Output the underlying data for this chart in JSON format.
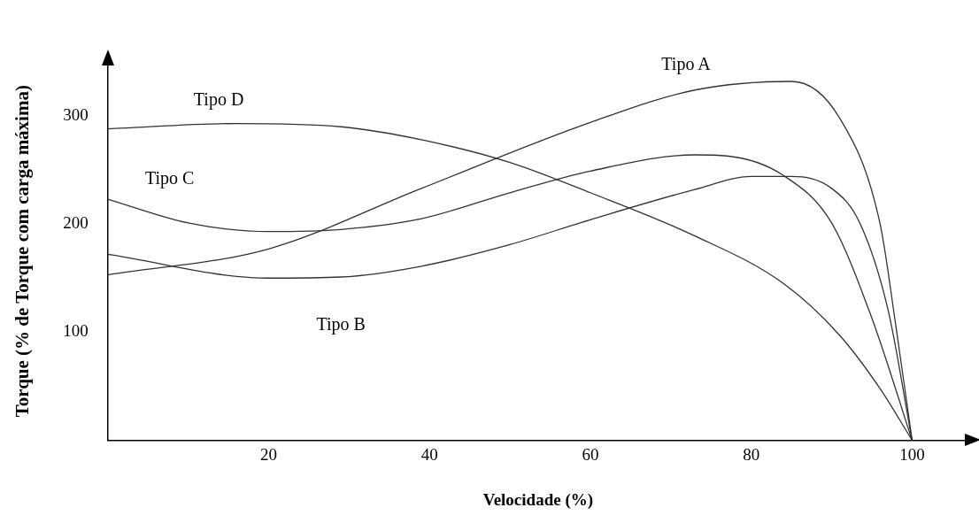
{
  "chart_data": {
    "type": "line",
    "xlabel": "Velocidade (%)",
    "ylabel": "Torque (% de Torque com carga máxima)",
    "xlim": [
      0,
      107
    ],
    "xticks": [
      20,
      40,
      60,
      80,
      100
    ],
    "ylim": [
      0,
      350
    ],
    "yticks": [
      100,
      200,
      300
    ],
    "grid": false,
    "legend": false,
    "marker": "none",
    "line_style": "solid",
    "series": [
      {
        "name": "Tipo A",
        "color": "#333333",
        "x": [
          0,
          20,
          39,
          60,
          73,
          85,
          91,
          96,
          98,
          100
        ],
        "values": [
          153,
          177,
          233,
          294,
          324,
          332,
          298,
          201,
          105,
          0
        ]
      },
      {
        "name": "Tipo B",
        "color": "#333333",
        "x": [
          0,
          20,
          29,
          39,
          50,
          60,
          73,
          80,
          85,
          90,
          93.5,
          97,
          100
        ],
        "values": [
          172,
          150,
          151,
          161,
          181,
          204,
          232,
          244,
          244,
          233,
          201,
          121,
          0
        ]
      },
      {
        "name": "Tipo C",
        "color": "#333333",
        "x": [
          0,
          10,
          20,
          29,
          39,
          50,
          60,
          73,
          77,
          84,
          90,
          95,
          100
        ],
        "values": [
          223,
          201,
          193,
          195,
          205,
          229,
          249,
          264,
          263,
          245,
          201,
          113,
          0
        ]
      },
      {
        "name": "Tipo D",
        "color": "#333333",
        "x": [
          0,
          16,
          29,
          39,
          50,
          60,
          73,
          84,
          91,
          96,
          100
        ],
        "values": [
          288,
          293,
          290,
          278,
          257,
          229,
          189,
          145,
          97,
          48,
          0
        ]
      }
    ]
  }
}
